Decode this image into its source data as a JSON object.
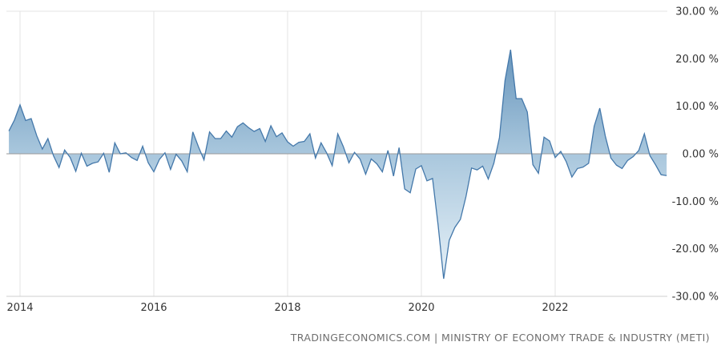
{
  "chart_data": {
    "type": "area",
    "title": "",
    "unit": "%",
    "start_year": 2013,
    "start_month": 11,
    "frequency": "monthly",
    "monthly_values": [
      4.8,
      7.1,
      10.3,
      7.0,
      7.4,
      3.8,
      1.0,
      3.2,
      -0.4,
      -2.9,
      0.8,
      -0.8,
      -3.7,
      0.1,
      -2.6,
      -2.0,
      -1.7,
      0.1,
      -3.9,
      2.3,
      0.0,
      0.2,
      -0.8,
      -1.4,
      1.6,
      -1.9,
      -3.8,
      -1.2,
      0.2,
      -3.3,
      -0.1,
      -1.5,
      -3.8,
      4.6,
      1.5,
      -1.3,
      4.6,
      3.2,
      3.2,
      4.8,
      3.5,
      5.7,
      6.5,
      5.5,
      4.7,
      5.3,
      2.6,
      5.9,
      3.6,
      4.4,
      2.5,
      1.6,
      2.4,
      2.6,
      4.2,
      -0.9,
      2.3,
      0.2,
      -2.5,
      4.2,
      1.5,
      -1.9,
      0.3,
      -1.1,
      -4.3,
      -1.1,
      -2.1,
      -3.8,
      0.7,
      -4.7,
      1.3,
      -7.4,
      -8.2,
      -3.2,
      -2.5,
      -5.7,
      -5.2,
      -15.0,
      -26.3,
      -18.2,
      -15.5,
      -13.8,
      -9.0,
      -3.0,
      -3.4,
      -2.6,
      -5.3,
      -2.0,
      3.4,
      15.4,
      21.9,
      11.6,
      11.6,
      8.8,
      -2.3,
      -4.1,
      3.5,
      2.7,
      -0.8,
      0.5,
      -1.7,
      -4.9,
      -3.1,
      -2.8,
      -2.0,
      5.8,
      9.6,
      3.7,
      -0.9,
      -2.4,
      -3.1,
      -1.4,
      -0.6,
      0.7,
      4.2,
      -0.4,
      -2.3,
      -4.4,
      -4.6
    ],
    "ylim": [
      -30,
      30
    ],
    "ytick_values": [
      30,
      20,
      10,
      0,
      -10,
      -20,
      -30
    ],
    "ytick_labels": [
      "30.00 %",
      "20.00 %",
      "10.00 %",
      "0.00 %",
      "-10.00 %",
      "-20.00 %",
      "-30.00 %"
    ],
    "xtick_years": [
      2014,
      2016,
      2018,
      2020,
      2022
    ],
    "xtick_labels": [
      "2014",
      "2016",
      "2018",
      "2020",
      "2022"
    ],
    "grid": "vertical-year-lines",
    "legend": "none",
    "colors": {
      "line": "#4478aa",
      "fill_top": "#4f83b0",
      "fill_mid": "#a9c7dd",
      "fill_bottom": "#eef6fb",
      "zero_line": "#9a9a9a",
      "grid_line": "#e3e3e3",
      "axis_line": "#cfcfcf",
      "axis_text": "#333333"
    }
  },
  "footer": {
    "source_text": "TRADINGECONOMICS.COM | MINISTRY OF ECONOMY TRADE & INDUSTRY (METI)"
  }
}
